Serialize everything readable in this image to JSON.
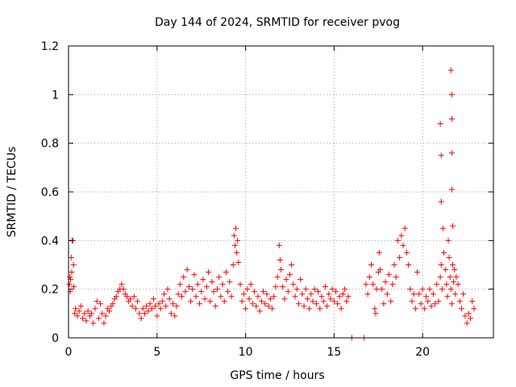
{
  "chart_data": {
    "type": "scatter",
    "title": "Day 144 of 2024, SRMTID for receiver pvog",
    "xlabel": "GPS time / hours",
    "ylabel": "SRMTID / TECUs",
    "xlim": [
      0,
      24
    ],
    "ylim": [
      0,
      1.2
    ],
    "xticks": [
      0,
      5,
      10,
      15,
      20
    ],
    "xtick_labels": [
      "0",
      "5",
      "10",
      "15",
      "20"
    ],
    "yticks": [
      0,
      0.2,
      0.4,
      0.6,
      0.8,
      1.0,
      1.2
    ],
    "ytick_labels": [
      "0",
      "0.2",
      "0.4",
      "0.6",
      "0.8",
      "1",
      "1.2"
    ],
    "grid": true,
    "marker": "+",
    "color": "#ff0000",
    "series": [
      {
        "name": "pvog",
        "points": [
          [
            0.05,
            0.22
          ],
          [
            0.08,
            0.25
          ],
          [
            0.1,
            0.19
          ],
          [
            0.12,
            0.24
          ],
          [
            0.15,
            0.33
          ],
          [
            0.18,
            0.27
          ],
          [
            0.2,
            0.4
          ],
          [
            0.25,
            0.4
          ],
          [
            0.28,
            0.3
          ],
          [
            0.3,
            0.21
          ],
          [
            0.35,
            0.1
          ],
          [
            0.4,
            0.12
          ],
          [
            0.5,
            0.09
          ],
          [
            0.6,
            0.11
          ],
          [
            0.7,
            0.13
          ],
          [
            0.8,
            0.08
          ],
          [
            0.9,
            0.1
          ],
          [
            1.0,
            0.07
          ],
          [
            1.1,
            0.11
          ],
          [
            1.2,
            0.09
          ],
          [
            1.3,
            0.1
          ],
          [
            1.4,
            0.06
          ],
          [
            1.5,
            0.12
          ],
          [
            1.6,
            0.15
          ],
          [
            1.7,
            0.08
          ],
          [
            1.8,
            0.14
          ],
          [
            1.9,
            0.1
          ],
          [
            2.0,
            0.06
          ],
          [
            2.1,
            0.09
          ],
          [
            2.2,
            0.12
          ],
          [
            2.3,
            0.11
          ],
          [
            2.4,
            0.13
          ],
          [
            2.5,
            0.14
          ],
          [
            2.6,
            0.16
          ],
          [
            2.7,
            0.17
          ],
          [
            2.8,
            0.19
          ],
          [
            2.9,
            0.2
          ],
          [
            3.0,
            0.22
          ],
          [
            3.1,
            0.2
          ],
          [
            3.2,
            0.18
          ],
          [
            3.3,
            0.17
          ],
          [
            3.4,
            0.15
          ],
          [
            3.5,
            0.16
          ],
          [
            3.6,
            0.13
          ],
          [
            3.7,
            0.17
          ],
          [
            3.8,
            0.12
          ],
          [
            3.9,
            0.15
          ],
          [
            4.0,
            0.1
          ],
          [
            4.1,
            0.08
          ],
          [
            4.2,
            0.12
          ],
          [
            4.3,
            0.1
          ],
          [
            4.4,
            0.13
          ],
          [
            4.5,
            0.11
          ],
          [
            4.6,
            0.14
          ],
          [
            4.7,
            0.12
          ],
          [
            4.8,
            0.16
          ],
          [
            4.9,
            0.13
          ],
          [
            5.0,
            0.09
          ],
          [
            5.1,
            0.14
          ],
          [
            5.2,
            0.12
          ],
          [
            5.3,
            0.15
          ],
          [
            5.4,
            0.18
          ],
          [
            5.5,
            0.13
          ],
          [
            5.6,
            0.2
          ],
          [
            5.7,
            0.16
          ],
          [
            5.8,
            0.1
          ],
          [
            5.9,
            0.14
          ],
          [
            6.0,
            0.09
          ],
          [
            6.1,
            0.13
          ],
          [
            6.2,
            0.18
          ],
          [
            6.3,
            0.22
          ],
          [
            6.4,
            0.17
          ],
          [
            6.5,
            0.25
          ],
          [
            6.6,
            0.19
          ],
          [
            6.7,
            0.28
          ],
          [
            6.8,
            0.21
          ],
          [
            6.9,
            0.15
          ],
          [
            7.0,
            0.2
          ],
          [
            7.1,
            0.26
          ],
          [
            7.2,
            0.17
          ],
          [
            7.3,
            0.22
          ],
          [
            7.4,
            0.14
          ],
          [
            7.5,
            0.19
          ],
          [
            7.6,
            0.24
          ],
          [
            7.7,
            0.16
          ],
          [
            7.8,
            0.21
          ],
          [
            7.9,
            0.27
          ],
          [
            8.0,
            0.15
          ],
          [
            8.1,
            0.23
          ],
          [
            8.2,
            0.19
          ],
          [
            8.3,
            0.13
          ],
          [
            8.4,
            0.2
          ],
          [
            8.5,
            0.25
          ],
          [
            8.6,
            0.17
          ],
          [
            8.7,
            0.22
          ],
          [
            8.8,
            0.15
          ],
          [
            8.9,
            0.27
          ],
          [
            9.0,
            0.19
          ],
          [
            9.1,
            0.23
          ],
          [
            9.2,
            0.17
          ],
          [
            9.3,
            0.3
          ],
          [
            9.35,
            0.42
          ],
          [
            9.4,
            0.38
          ],
          [
            9.45,
            0.45
          ],
          [
            9.5,
            0.35
          ],
          [
            9.55,
            0.4
          ],
          [
            9.6,
            0.31
          ],
          [
            9.7,
            0.22
          ],
          [
            9.8,
            0.15
          ],
          [
            9.9,
            0.18
          ],
          [
            10.0,
            0.12
          ],
          [
            10.1,
            0.2
          ],
          [
            10.2,
            0.16
          ],
          [
            10.3,
            0.22
          ],
          [
            10.4,
            0.14
          ],
          [
            10.5,
            0.19
          ],
          [
            10.6,
            0.13
          ],
          [
            10.7,
            0.17
          ],
          [
            10.8,
            0.11
          ],
          [
            10.9,
            0.15
          ],
          [
            11.0,
            0.19
          ],
          [
            11.1,
            0.14
          ],
          [
            11.2,
            0.18
          ],
          [
            11.3,
            0.13
          ],
          [
            11.4,
            0.16
          ],
          [
            11.5,
            0.12
          ],
          [
            11.6,
            0.17
          ],
          [
            11.7,
            0.21
          ],
          [
            11.8,
            0.25
          ],
          [
            11.9,
            0.38
          ],
          [
            11.95,
            0.32
          ],
          [
            12.0,
            0.28
          ],
          [
            12.1,
            0.21
          ],
          [
            12.2,
            0.16
          ],
          [
            12.3,
            0.24
          ],
          [
            12.4,
            0.19
          ],
          [
            12.5,
            0.26
          ],
          [
            12.6,
            0.3
          ],
          [
            12.7,
            0.22
          ],
          [
            12.8,
            0.17
          ],
          [
            12.9,
            0.2
          ],
          [
            13.0,
            0.14
          ],
          [
            13.1,
            0.24
          ],
          [
            13.2,
            0.18
          ],
          [
            13.3,
            0.13
          ],
          [
            13.4,
            0.2
          ],
          [
            13.5,
            0.16
          ],
          [
            13.6,
            0.12
          ],
          [
            13.7,
            0.18
          ],
          [
            13.8,
            0.15
          ],
          [
            13.9,
            0.2
          ],
          [
            14.0,
            0.14
          ],
          [
            14.1,
            0.19
          ],
          [
            14.2,
            0.12
          ],
          [
            14.3,
            0.17
          ],
          [
            14.4,
            0.15
          ],
          [
            14.5,
            0.21
          ],
          [
            14.6,
            0.13
          ],
          [
            14.7,
            0.18
          ],
          [
            14.8,
            0.16
          ],
          [
            14.9,
            0.2
          ],
          [
            15.0,
            0.15
          ],
          [
            15.1,
            0.19
          ],
          [
            15.2,
            0.14
          ],
          [
            15.3,
            0.17
          ],
          [
            15.4,
            0.12
          ],
          [
            15.5,
            0.18
          ],
          [
            15.6,
            0.2
          ],
          [
            15.7,
            0.15
          ],
          [
            15.8,
            0.17
          ],
          [
            16.0,
            0.0
          ],
          [
            16.7,
            0.0
          ],
          [
            16.8,
            0.22
          ],
          [
            16.9,
            0.18
          ],
          [
            17.0,
            0.25
          ],
          [
            17.1,
            0.3
          ],
          [
            17.2,
            0.22
          ],
          [
            17.3,
            0.12
          ],
          [
            17.35,
            0.1
          ],
          [
            17.4,
            0.2
          ],
          [
            17.5,
            0.27
          ],
          [
            17.55,
            0.35
          ],
          [
            17.6,
            0.28
          ],
          [
            17.7,
            0.2
          ],
          [
            17.8,
            0.14
          ],
          [
            17.9,
            0.23
          ],
          [
            18.0,
            0.18
          ],
          [
            18.1,
            0.26
          ],
          [
            18.2,
            0.15
          ],
          [
            18.3,
            0.22
          ],
          [
            18.4,
            0.3
          ],
          [
            18.5,
            0.25
          ],
          [
            18.6,
            0.4
          ],
          [
            18.7,
            0.33
          ],
          [
            18.8,
            0.42
          ],
          [
            18.9,
            0.38
          ],
          [
            19.0,
            0.45
          ],
          [
            19.1,
            0.35
          ],
          [
            19.2,
            0.3
          ],
          [
            19.3,
            0.2
          ],
          [
            19.4,
            0.15
          ],
          [
            19.5,
            0.18
          ],
          [
            19.6,
            0.12
          ],
          [
            19.7,
            0.27
          ],
          [
            19.8,
            0.18
          ],
          [
            19.9,
            0.14
          ],
          [
            20.0,
            0.2
          ],
          [
            20.1,
            0.12
          ],
          [
            20.2,
            0.17
          ],
          [
            20.3,
            0.15
          ],
          [
            20.4,
            0.2
          ],
          [
            20.5,
            0.13
          ],
          [
            20.6,
            0.18
          ],
          [
            20.7,
            0.14
          ],
          [
            20.8,
            0.22
          ],
          [
            20.9,
            0.15
          ],
          [
            21.0,
            0.25
          ],
          [
            21.05,
            0.3
          ],
          [
            21.1,
            0.2
          ],
          [
            21.15,
            0.45
          ],
          [
            21.2,
            0.35
          ],
          [
            21.3,
            0.28
          ],
          [
            21.35,
            0.22
          ],
          [
            21.4,
            0.17
          ],
          [
            21.45,
            0.4
          ],
          [
            21.5,
            0.33
          ],
          [
            21.55,
            0.25
          ],
          [
            21.6,
            0.2
          ],
          [
            21.65,
            0.14
          ],
          [
            21.7,
            0.3
          ],
          [
            21.75,
            0.23
          ],
          [
            21.8,
            0.28
          ],
          [
            21.85,
            0.18
          ],
          [
            21.9,
            0.25
          ],
          [
            22.0,
            0.22
          ],
          [
            22.1,
            0.15
          ],
          [
            22.2,
            0.12
          ],
          [
            22.3,
            0.18
          ],
          [
            22.4,
            0.09
          ],
          [
            22.5,
            0.06
          ],
          [
            22.6,
            0.1
          ],
          [
            22.7,
            0.08
          ],
          [
            22.8,
            0.15
          ],
          [
            22.9,
            0.12
          ],
          [
            21.0,
            0.88
          ],
          [
            21.05,
            0.75
          ],
          [
            21.05,
            0.56
          ],
          [
            21.6,
            1.1
          ],
          [
            21.65,
            1.0
          ],
          [
            21.65,
            0.9
          ],
          [
            21.65,
            0.76
          ],
          [
            21.65,
            0.61
          ],
          [
            21.7,
            0.46
          ]
        ]
      }
    ]
  }
}
